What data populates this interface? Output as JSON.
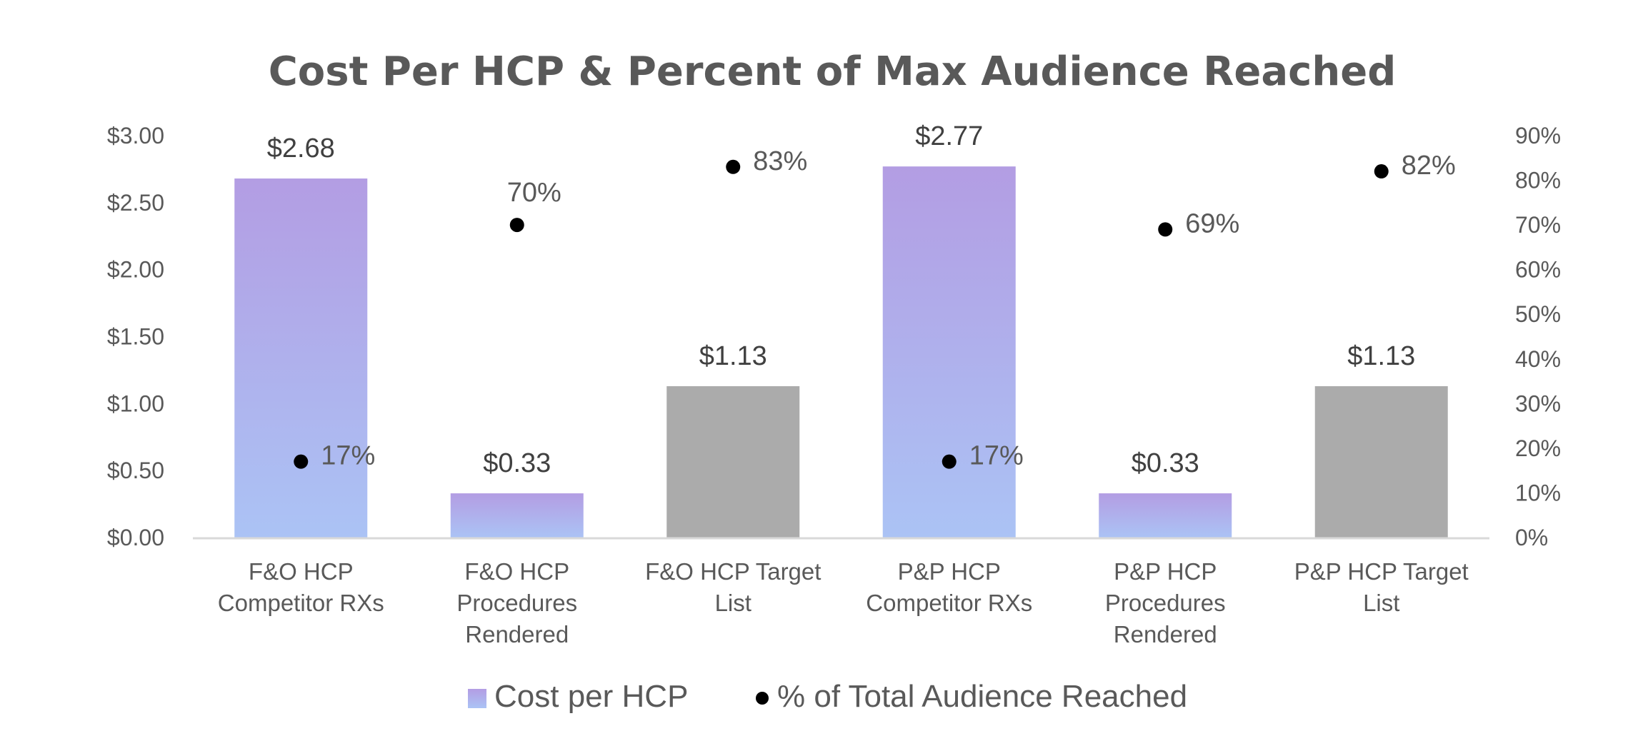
{
  "chart_data": {
    "type": "bar",
    "title": "Cost Per HCP & Percent of Max Audience Reached",
    "xlabel": "",
    "ylabel": "",
    "y2label": "",
    "categories": [
      [
        "F&O HCP",
        "Competitor RXs"
      ],
      [
        "F&O HCP",
        "Procedures",
        "Rendered"
      ],
      [
        "F&O HCP Target",
        "List"
      ],
      [
        "P&P HCP",
        "Competitor RXs"
      ],
      [
        "P&P HCP",
        "Procedures",
        "Rendered"
      ],
      [
        "P&P HCP Target",
        "List"
      ]
    ],
    "series": [
      {
        "name": "Cost per HCP",
        "type": "bar",
        "axis": "left",
        "values": [
          2.68,
          0.33,
          1.13,
          2.77,
          0.33,
          1.13
        ],
        "labels": [
          "$2.68",
          "$0.33",
          "$1.13",
          "$2.77",
          "$0.33",
          "$1.13"
        ],
        "fill_styles": [
          "gradient",
          "gradient",
          "gray",
          "gradient",
          "gradient",
          "gray"
        ]
      },
      {
        "name": "% of Total Audience Reached",
        "type": "scatter",
        "axis": "right",
        "values": [
          0.17,
          0.7,
          0.83,
          0.17,
          0.69,
          0.82
        ],
        "labels": [
          "17%",
          "70%",
          "83%",
          "17%",
          "69%",
          "82%"
        ],
        "label_positions": [
          "right",
          "above",
          "right",
          "right",
          "right",
          "right"
        ]
      }
    ],
    "ylim": [
      0,
      3.0
    ],
    "y_ticks": [
      0,
      0.5,
      1.0,
      1.5,
      2.0,
      2.5,
      3.0
    ],
    "y_tick_labels": [
      "$0.00",
      "$0.50",
      "$1.00",
      "$1.50",
      "$2.00",
      "$2.50",
      "$3.00"
    ],
    "y2lim": [
      0,
      0.9
    ],
    "y2_ticks": [
      0,
      0.1,
      0.2,
      0.3,
      0.4,
      0.5,
      0.6,
      0.7,
      0.8,
      0.9
    ],
    "y2_tick_labels": [
      "0%",
      "10%",
      "20%",
      "30%",
      "40%",
      "50%",
      "60%",
      "70%",
      "80%",
      "90%"
    ],
    "grid": false,
    "legend": {
      "placement": "bottom",
      "entries": [
        "Cost per HCP",
        "% of Total Audience Reached"
      ]
    }
  },
  "colors": {
    "bar_gradient_top": "#B39DE3",
    "bar_gradient_bottom": "#ABC3F5",
    "bar_gray": "#ABABAB",
    "dot": "#000000",
    "axis_line": "#D9D9D9",
    "text": "#595959"
  }
}
